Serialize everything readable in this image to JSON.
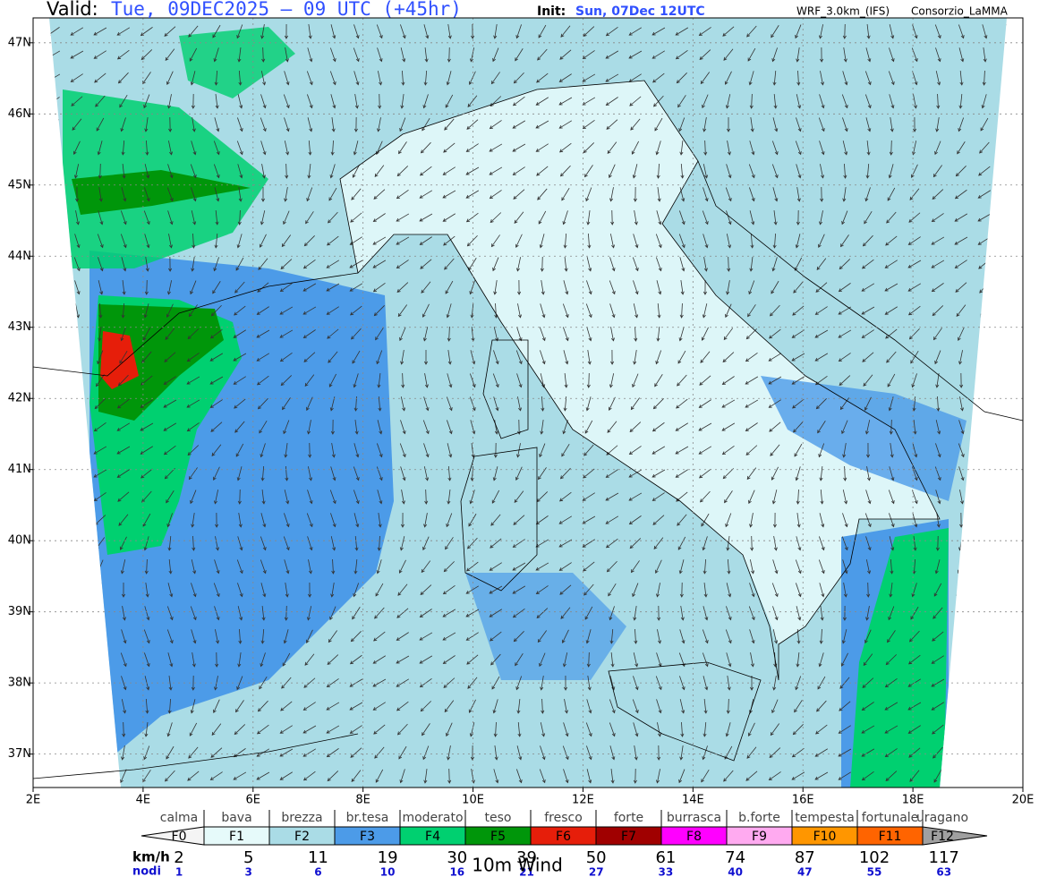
{
  "header": {
    "valid_label": "Valid:",
    "valid_value": "Tue, 09DEC2025 — 09 UTC (+45hr)",
    "init_label": "Init:",
    "init_value": "Sun, 07Dec 12UTC",
    "model": "WRF_3.0km_(IFS)",
    "source": "Consorzio_LaMMA"
  },
  "map": {
    "xlim": [
      2,
      20
    ],
    "ylim": [
      36.53,
      47.35
    ],
    "xticks": [
      {
        "value": 2,
        "label": "2E"
      },
      {
        "value": 4,
        "label": "4E"
      },
      {
        "value": 6,
        "label": "6E"
      },
      {
        "value": 8,
        "label": "8E"
      },
      {
        "value": 10,
        "label": "10E"
      },
      {
        "value": 12,
        "label": "12E"
      },
      {
        "value": 14,
        "label": "14E"
      },
      {
        "value": 16,
        "label": "16E"
      },
      {
        "value": 18,
        "label": "18E"
      },
      {
        "value": 20,
        "label": "20E"
      }
    ],
    "yticks": [
      {
        "value": 37,
        "label": "37N"
      },
      {
        "value": 38,
        "label": "38N"
      },
      {
        "value": 39,
        "label": "39N"
      },
      {
        "value": 40,
        "label": "40N"
      },
      {
        "value": 41,
        "label": "41N"
      },
      {
        "value": 42,
        "label": "42N"
      },
      {
        "value": 43,
        "label": "43N"
      },
      {
        "value": 44,
        "label": "44N"
      },
      {
        "value": 45,
        "label": "45N"
      },
      {
        "value": 46,
        "label": "46N"
      },
      {
        "value": 47,
        "label": "47N"
      }
    ]
  },
  "legend": {
    "title": "10m Wind",
    "unit_kmh": "km/h",
    "unit_knots": "nodi",
    "classes": [
      {
        "name": "calma",
        "force": "F0",
        "color": "#f4f4f4"
      },
      {
        "name": "bava",
        "force": "F1",
        "color": "#e6fafa"
      },
      {
        "name": "brezza",
        "force": "F2",
        "color": "#aadce6"
      },
      {
        "name": "br.tesa",
        "force": "F3",
        "color": "#4c9be8"
      },
      {
        "name": "moderato",
        "force": "F4",
        "color": "#00d070"
      },
      {
        "name": "teso",
        "force": "F5",
        "color": "#00960a"
      },
      {
        "name": "fresco",
        "force": "F6",
        "color": "#e61e0a"
      },
      {
        "name": "forte",
        "force": "F7",
        "color": "#a00000"
      },
      {
        "name": "burrasca",
        "force": "F8",
        "color": "#ff00ff"
      },
      {
        "name": "b.forte",
        "force": "F9",
        "color": "#ffaaf0"
      },
      {
        "name": "tempesta",
        "force": "F10",
        "color": "#ff9600"
      },
      {
        "name": "fortunale",
        "force": "F11",
        "color": "#ff6400"
      },
      {
        "name": "uragano",
        "force": "F12",
        "color": "#a0a0a0"
      }
    ],
    "kmh": [
      2,
      5,
      11,
      19,
      30,
      39,
      50,
      61,
      74,
      87,
      102,
      117
    ],
    "knots": [
      1,
      3,
      6,
      10,
      16,
      21,
      27,
      33,
      40,
      47,
      55,
      63
    ]
  }
}
